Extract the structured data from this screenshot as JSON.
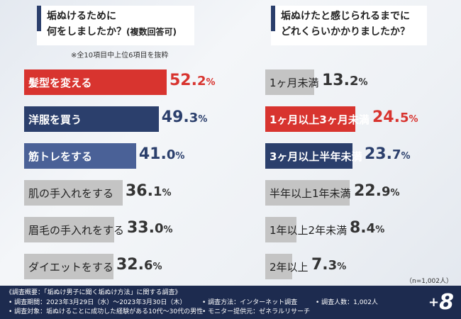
{
  "colors": {
    "red": "#d8342f",
    "navy": "#2b3f6c",
    "blue": "#4a6197",
    "grey": "#c4c4c4"
  },
  "left_question": {
    "line1": "垢ぬけるために",
    "line2": "何をしましたか？",
    "sub": "(複数回答可)"
  },
  "left_note": "※全10項目中上位6項目を抜粋",
  "right_question": {
    "line1": "垢ぬけたと感じられるまでに",
    "line2": "どれくらいかかりましたか？"
  },
  "n_note": "（n=1,002人）",
  "chart_data": [
    {
      "type": "bar",
      "title": "垢ぬけるために何をしましたか？(複数回答可)",
      "unit": "%",
      "categories": [
        "髪型を変える",
        "洋服を買う",
        "筋トレをする",
        "肌の手入れをする",
        "眉毛の手入れをする",
        "ダイエットをする"
      ],
      "values": [
        52.2,
        49.3,
        41.0,
        36.1,
        33.0,
        32.6
      ],
      "value_labels": [
        [
          "52.",
          "2",
          "%"
        ],
        [
          "49.",
          "3",
          "%"
        ],
        [
          "41.",
          "0",
          "%"
        ],
        [
          "36.",
          "1",
          "%"
        ],
        [
          "33.",
          "0",
          "%"
        ],
        [
          "32.",
          "6",
          "%"
        ]
      ],
      "bar_colors": [
        "red",
        "navy",
        "blue",
        "grey",
        "grey",
        "grey"
      ]
    },
    {
      "type": "bar",
      "title": "垢ぬけたと感じられるまでにどれくらいかかりましたか？",
      "unit": "%",
      "categories": [
        "1ヶ月未満",
        "1ヶ月以上3ヶ月未満",
        "3ヶ月以上半年未満",
        "半年以上1年未満",
        "1年以上2年未満",
        "2年以上"
      ],
      "values": [
        13.2,
        24.5,
        23.7,
        22.9,
        8.4,
        7.3
      ],
      "value_labels": [
        [
          "13.",
          "2",
          "%"
        ],
        [
          "24.",
          "5",
          "%"
        ],
        [
          "23.",
          "7",
          "%"
        ],
        [
          "22.",
          "9",
          "%"
        ],
        [
          "8.",
          "4",
          "%"
        ],
        [
          "7.",
          "3",
          "%"
        ]
      ],
      "bar_colors": [
        "grey",
        "red",
        "navy",
        "grey",
        "grey",
        "grey"
      ]
    }
  ],
  "footer": {
    "title": "《調査概要：「垢ぬけ男子に聞く垢ぬけ方法」に関する調査》",
    "period": "• 調査期間：2023年3月29日（水）～2023年3月30日（木）",
    "method": "• 調査方法：インターネット調査",
    "people": "• 調査人数：1,002人",
    "target": "• 調査対象：垢ぬけることに成功した経験がある10代～30代の男性",
    "monitor": "• モニター提供元：ゼネラルリサーチ",
    "brand_plus": "+",
    "brand_num": "8"
  }
}
